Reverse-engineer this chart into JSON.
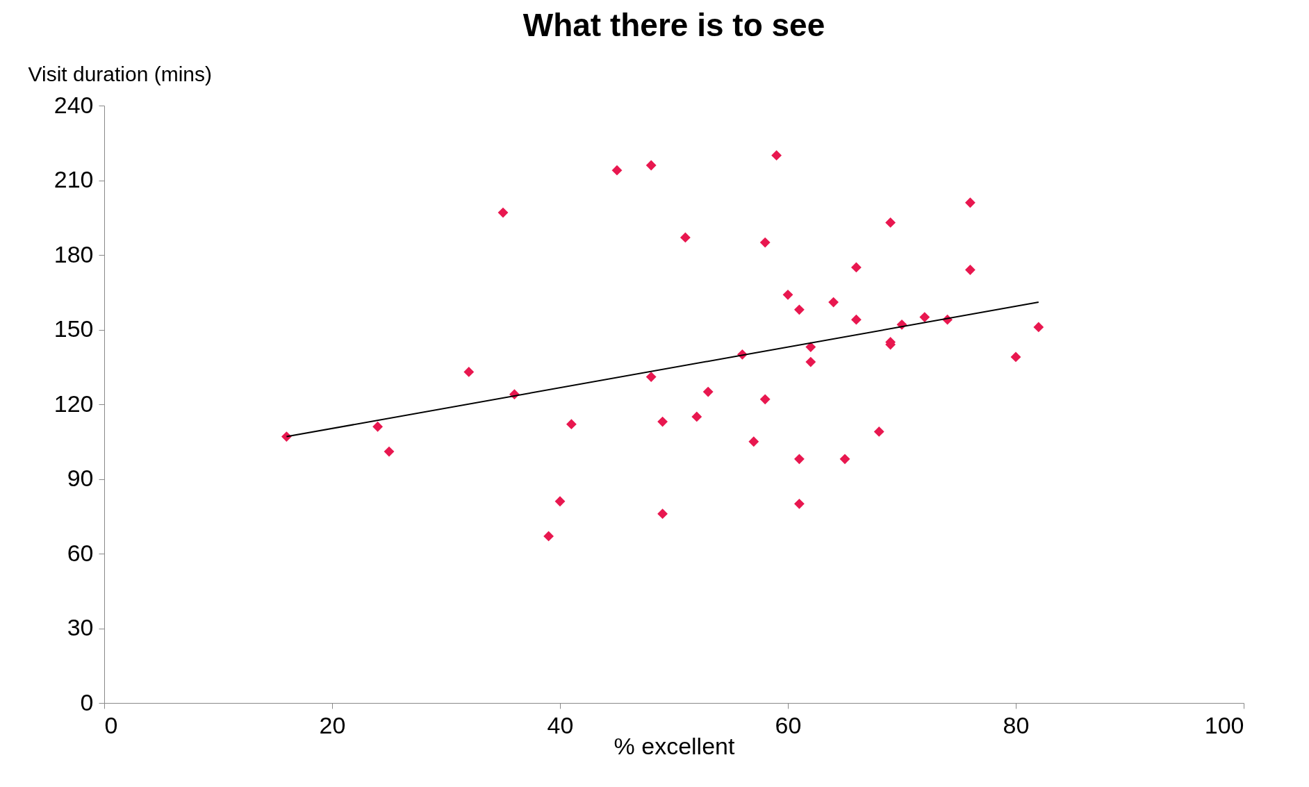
{
  "chart_data": {
    "type": "scatter",
    "title": "What there is to see",
    "xlabel": "% excellent",
    "ylabel": "Visit duration (mins)",
    "xlim": [
      0,
      100
    ],
    "xticks": [
      0,
      20,
      40,
      60,
      80,
      100
    ],
    "ylim": [
      0,
      240
    ],
    "yticks": [
      0,
      30,
      60,
      90,
      120,
      150,
      180,
      210,
      240
    ],
    "grid": false,
    "marker": "diamond",
    "series": [
      {
        "color": "#e8174f",
        "x": [
          16,
          24,
          25,
          32,
          35,
          36,
          39,
          40,
          41,
          45,
          48,
          48,
          49,
          49,
          51,
          52,
          53,
          56,
          57,
          58,
          58,
          59,
          60,
          61,
          61,
          61,
          62,
          62,
          64,
          65,
          66,
          66,
          68,
          69,
          69,
          69,
          70,
          72,
          74,
          76,
          76,
          80,
          82
        ],
        "values": [
          107,
          111,
          101,
          133,
          197,
          124,
          67,
          81,
          112,
          214,
          216,
          131,
          113,
          76,
          187,
          115,
          125,
          140,
          105,
          185,
          122,
          220,
          164,
          158,
          98,
          80,
          143,
          137,
          161,
          98,
          175,
          154,
          109,
          193,
          145,
          144,
          152,
          155,
          154,
          201,
          174,
          139,
          151
        ]
      },
      {
        "type": "line",
        "color": "#000000",
        "marker": "none",
        "line_style": "solid",
        "x": [
          16,
          82
        ],
        "values": [
          107,
          161
        ]
      }
    ]
  }
}
